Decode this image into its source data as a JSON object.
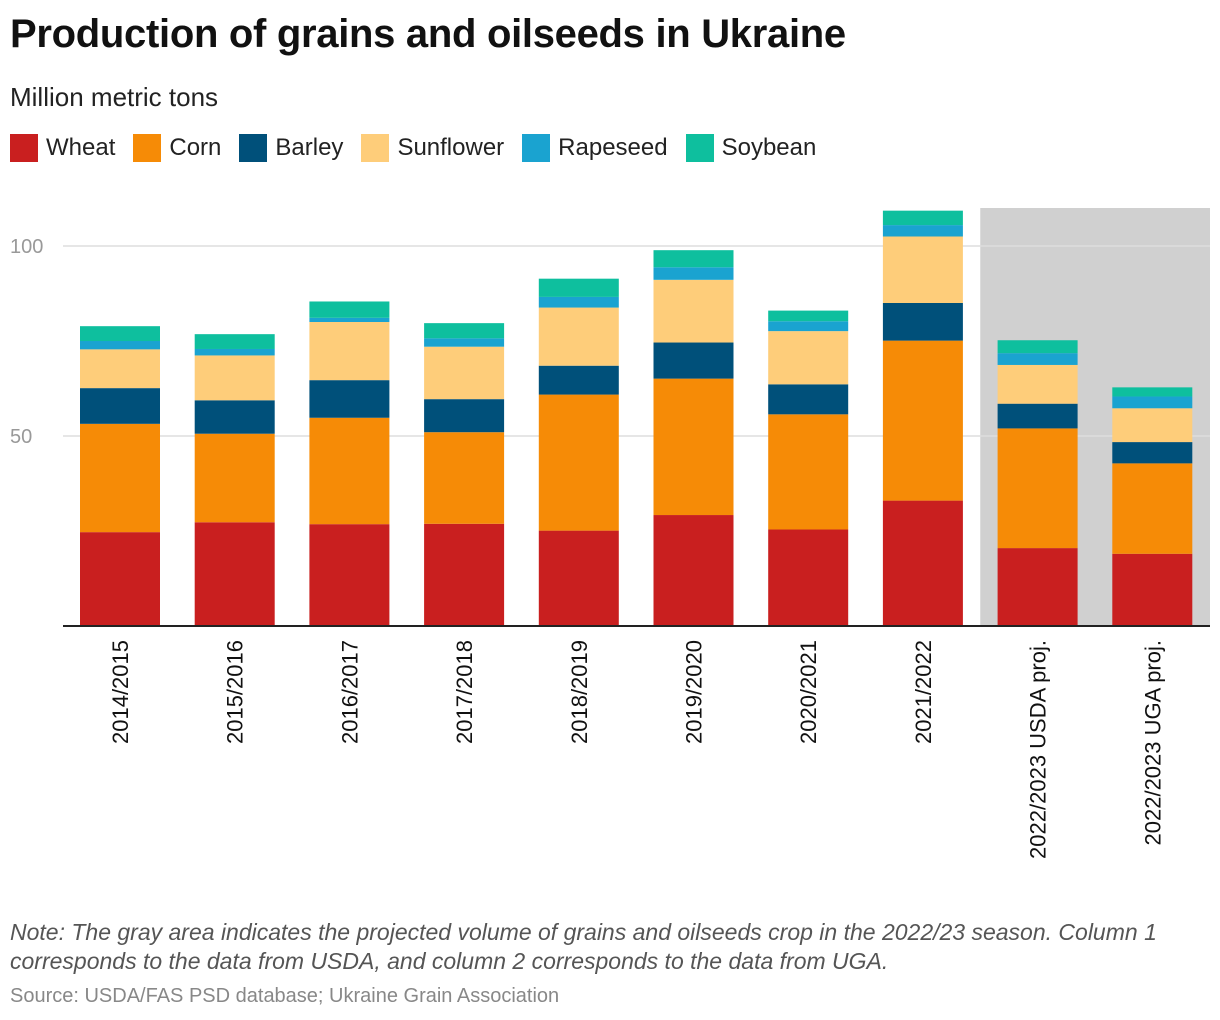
{
  "title": "Production of grains and oilseeds in Ukraine",
  "subtitle": "Million metric tons",
  "note": "Note: The gray area indicates the projected volume of grains and oilseeds crop in the 2022/23 season. Column 1 corresponds to the data from USDA, and column 2 corresponds to the data from UGA.",
  "source": "Source: USDA/FAS PSD database; Ukraine Grain Association",
  "chart_data": {
    "type": "bar",
    "stacked": true,
    "title": "Production of grains and oilseeds in Ukraine",
    "subtitle": "Million metric tons",
    "categories": [
      "2014/2015",
      "2015/2016",
      "2016/2017",
      "2017/2018",
      "2018/2019",
      "2019/2020",
      "2020/2021",
      "2021/2022",
      "2022/2023 USDA proj.",
      "2022/2023 UGA proj."
    ],
    "projected_categories": [
      "2022/2023 USDA proj.",
      "2022/2023 UGA proj."
    ],
    "projected_shading_color": "#d0d0d0",
    "ylim": [
      0,
      110
    ],
    "yticks": [
      50,
      100
    ],
    "grid": true,
    "legend_position": "top-left",
    "series": [
      {
        "name": "Wheat",
        "color": "#c91f1f",
        "values": [
          24.7,
          27.3,
          26.8,
          26.9,
          25.1,
          29.2,
          25.4,
          33.0,
          20.5,
          19.0
        ]
      },
      {
        "name": "Corn",
        "color": "#f68b06",
        "values": [
          28.5,
          23.3,
          28.0,
          24.1,
          35.8,
          35.9,
          30.3,
          42.1,
          31.5,
          23.8
        ]
      },
      {
        "name": "Barley",
        "color": "#00507a",
        "values": [
          9.4,
          8.8,
          9.9,
          8.7,
          7.6,
          9.5,
          7.9,
          9.9,
          6.5,
          5.6
        ]
      },
      {
        "name": "Sunflower",
        "color": "#fecd7a",
        "values": [
          10.2,
          11.8,
          15.3,
          13.8,
          15.3,
          16.5,
          14.0,
          17.5,
          10.2,
          8.9
        ]
      },
      {
        "name": "Rapeseed",
        "color": "#1aa3d0",
        "values": [
          2.2,
          1.7,
          1.1,
          2.2,
          2.8,
          3.3,
          2.6,
          3.0,
          3.1,
          3.1
        ]
      },
      {
        "name": "Soybean",
        "color": "#0ebf9e",
        "values": [
          3.9,
          3.9,
          4.3,
          4.0,
          4.8,
          4.5,
          2.8,
          3.8,
          3.4,
          2.4
        ]
      }
    ]
  }
}
